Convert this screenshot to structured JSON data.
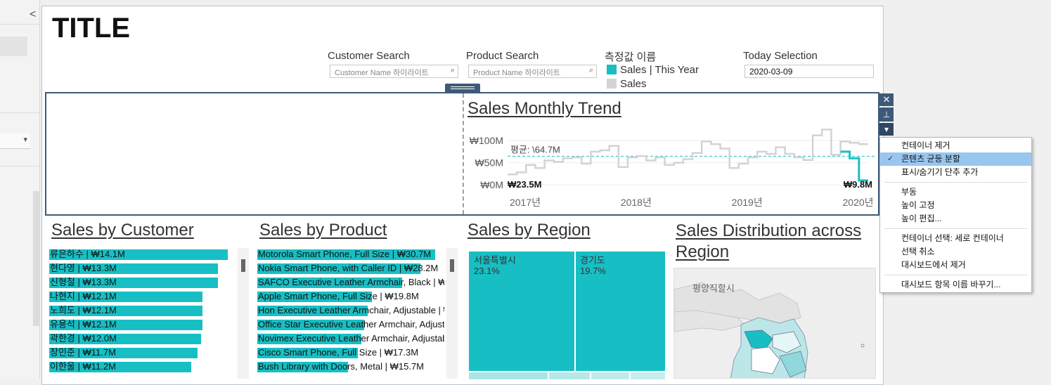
{
  "title": "TITLE",
  "filters": {
    "customer": {
      "label": "Customer Search",
      "placeholder": "Customer Name 하이라이트"
    },
    "product": {
      "label": "Product Search",
      "placeholder": "Product Name 하이라이트"
    },
    "legend": {
      "label": "측정값 이름",
      "items": [
        "Sales | This Year",
        "Sales"
      ],
      "colors": [
        "#17bfc4",
        "#d3d3d3"
      ]
    },
    "today": {
      "label": "Today Selection",
      "value": "2020-03-09"
    }
  },
  "trend": {
    "title": "Sales Monthly Trend",
    "avg_label": "평균: \\64.7M",
    "start_label": "₩23.5M",
    "end_label": "₩9.8M"
  },
  "chart_data": {
    "type": "line",
    "title": "Sales Monthly Trend",
    "y_ticks": [
      "₩100M",
      "₩50M",
      "₩0M"
    ],
    "ylim": [
      0,
      140
    ],
    "x_ticks": [
      "2017년",
      "2018년",
      "2019년",
      "2020년"
    ],
    "x": [
      "2017-01",
      "2017-02",
      "2017-03",
      "2017-04",
      "2017-05",
      "2017-06",
      "2017-07",
      "2017-08",
      "2017-09",
      "2017-10",
      "2017-11",
      "2017-12",
      "2018-01",
      "2018-02",
      "2018-03",
      "2018-04",
      "2018-05",
      "2018-06",
      "2018-07",
      "2018-08",
      "2018-09",
      "2018-10",
      "2018-11",
      "2018-12",
      "2019-01",
      "2019-02",
      "2019-03",
      "2019-04",
      "2019-05",
      "2019-06",
      "2019-07",
      "2019-08",
      "2019-09",
      "2019-10",
      "2019-11",
      "2019-12",
      "2020-01",
      "2020-02",
      "2020-03"
    ],
    "series": [
      {
        "name": "Sales",
        "values": [
          23.5,
          28,
          45,
          38,
          55,
          52,
          60,
          62,
          48,
          75,
          78,
          88,
          40,
          62,
          65,
          55,
          62,
          45,
          50,
          58,
          72,
          98,
          92,
          82,
          38,
          48,
          62,
          75,
          70,
          85,
          70,
          62,
          56,
          112,
          125,
          68,
          98,
          95,
          92
        ]
      },
      {
        "name": "Sales | This Year",
        "values": [
          null,
          null,
          null,
          null,
          null,
          null,
          null,
          null,
          null,
          null,
          null,
          null,
          null,
          null,
          null,
          null,
          null,
          null,
          null,
          null,
          null,
          null,
          null,
          null,
          null,
          null,
          null,
          null,
          null,
          null,
          null,
          null,
          null,
          null,
          null,
          null,
          75,
          60,
          9.8
        ]
      }
    ],
    "average": 64.7
  },
  "customer": {
    "title": "Sales by Customer",
    "items": [
      {
        "label": "류은하수 | ₩14.1M",
        "value": 14.1
      },
      {
        "label": "현다영 | ₩13.3M",
        "value": 13.3
      },
      {
        "label": "신형철 | ₩13.3M",
        "value": 13.3
      },
      {
        "label": "나현지 | ₩12.1M",
        "value": 12.1
      },
      {
        "label": "노희도 | ₩12.1M",
        "value": 12.1
      },
      {
        "label": "유용석 | ₩12.1M",
        "value": 12.1
      },
      {
        "label": "곽한경 | ₩12.0M",
        "value": 12.0
      },
      {
        "label": "장민준 | ₩11.7M",
        "value": 11.7
      },
      {
        "label": "이한울 | ₩11.2M",
        "value": 11.2
      }
    ]
  },
  "product": {
    "title": "Sales by Product",
    "items": [
      {
        "label": "Motorola Smart Phone, Full Size | ₩30.7M",
        "value": 30.7
      },
      {
        "label": "Nokia Smart Phone, with Caller ID | ₩28.2M",
        "value": 28.2
      },
      {
        "label": "SAFCO Executive Leather Armchair, Black | ₩",
        "value": 25.0
      },
      {
        "label": "Apple Smart Phone, Full Size | ₩19.8M",
        "value": 19.8
      },
      {
        "label": "Hon Executive Leather Armchair, Adjustable | ₩",
        "value": 19.0
      },
      {
        "label": "Office Star Executive Leather Armchair, Adjust",
        "value": 18.4
      },
      {
        "label": "Novimex Executive Leather Armchair, Adjustab",
        "value": 18.0
      },
      {
        "label": "Cisco Smart Phone, Full Size | ₩17.3M",
        "value": 17.3
      },
      {
        "label": "Bush Library with Doors, Metal | ₩15.7M",
        "value": 15.7
      }
    ]
  },
  "region": {
    "title": "Sales by Region",
    "items": [
      {
        "name": "서울특별시",
        "pct": "23.1%"
      },
      {
        "name": "경기도",
        "pct": "19.7%"
      }
    ]
  },
  "map": {
    "title": "Sales Distribution across Region",
    "city_label": "평양직할시"
  },
  "toolbar": {
    "close": "✕",
    "pin": "⊥",
    "more": "▾"
  },
  "context_menu": {
    "items": [
      {
        "label": "컨테이너 제거"
      },
      {
        "label": "콘텐츠 균등 분할",
        "checked": true
      },
      {
        "label": "표시/숨기기 단추 추가"
      },
      {
        "label": "부동"
      },
      {
        "label": "높이 고정"
      },
      {
        "label": "높이 편집..."
      },
      {
        "label": "컨테이너 선택: 세로 컨테이너"
      },
      {
        "label": "선택 취소"
      },
      {
        "label": "대시보드에서 제거"
      },
      {
        "label": "대시보드 항목 이름 바꾸기..."
      }
    ]
  },
  "left_pane": {
    "collapse": "<",
    "dropdown": "▾"
  }
}
